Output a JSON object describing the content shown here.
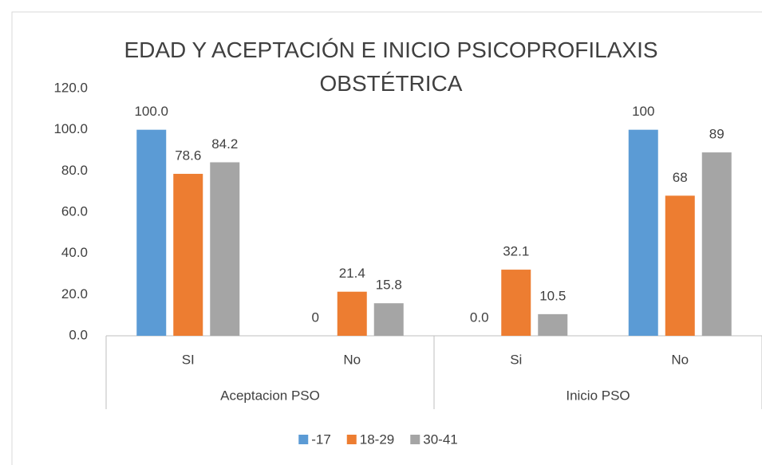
{
  "chart_data": {
    "type": "bar",
    "title": "EDAD Y ACEPTACIÓN E INICIO PSICOPROFILAXIS OBSTÉTRICA",
    "categories": [
      "SI",
      "No",
      "Si",
      "No"
    ],
    "groups": [
      {
        "name": "Aceptacion PSO",
        "size": 2
      },
      {
        "name": "Inicio PSO",
        "size": 2
      }
    ],
    "series": [
      {
        "name": "-17",
        "color": "#5b9bd5",
        "values": [
          100,
          0,
          0,
          100
        ],
        "value_labels": [
          "100.0",
          "0",
          "0.0",
          "100"
        ]
      },
      {
        "name": "18-29",
        "color": "#ed7d31",
        "values": [
          78.6,
          21.4,
          32.1,
          68
        ],
        "value_labels": [
          "78.6",
          "21.4",
          "32.1",
          "68"
        ]
      },
      {
        "name": "30-41",
        "color": "#a5a5a5",
        "values": [
          84.2,
          15.8,
          10.5,
          89
        ],
        "value_labels": [
          "84.2",
          "15.8",
          "10.5",
          "89"
        ]
      }
    ],
    "ylim": [
      0,
      120
    ],
    "yticks": [
      {
        "value": 0,
        "label": "0.0"
      },
      {
        "value": 20,
        "label": "20.0"
      },
      {
        "value": 40,
        "label": "40.0"
      },
      {
        "value": 60,
        "label": "60.0"
      },
      {
        "value": 80,
        "label": "80.0"
      },
      {
        "value": 100,
        "label": "100.0"
      },
      {
        "value": 120,
        "label": "120.0"
      }
    ],
    "grid": false,
    "legend": "bottom"
  }
}
